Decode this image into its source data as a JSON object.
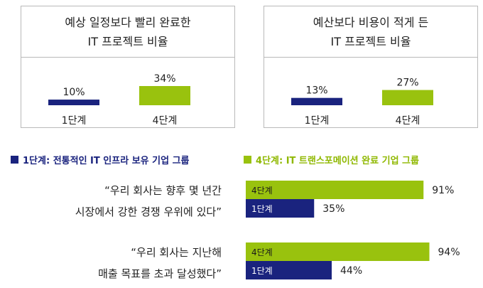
{
  "panels": [
    {
      "title_lines": [
        "예상 일정보다 빨리 완료한",
        "IT 프로젝트 비율"
      ],
      "left_value": "10%",
      "right_value": "34%",
      "left_category": "1단계",
      "right_category": "4단계"
    },
    {
      "title_lines": [
        "예산보다 비용이 적게 든",
        "IT 프로젝트 비율"
      ],
      "left_value": "13%",
      "right_value": "27%",
      "left_category": "1단계",
      "right_category": "4단계"
    }
  ],
  "legend": {
    "stage1": "1단계: 전통적인 IT 인프라 보유 기업 그룹",
    "stage4": "4단계: IT 트랜스포메이션 완료 기업 그룹"
  },
  "colors": {
    "stage1": "#1a237e",
    "stage4": "#99c20e"
  },
  "chart_data": [
    {
      "type": "bar",
      "title": "예상 일정보다 빨리 완료한 IT 프로젝트 비율",
      "categories": [
        "1단계",
        "4단계"
      ],
      "values": [
        10,
        34
      ],
      "unit": "%"
    },
    {
      "type": "bar",
      "title": "예산보다 비용이 적게 든 IT 프로젝트 비율",
      "categories": [
        "1단계",
        "4단계"
      ],
      "values": [
        13,
        27
      ],
      "unit": "%"
    },
    {
      "type": "bar",
      "orientation": "horizontal",
      "groups": [
        {
          "quote_lines": [
            "“우리 회사는 향후 몇 년간",
            "시장에서 강한 경쟁 우위에 있다”"
          ],
          "bars": [
            {
              "label": "4단계",
              "value": 91,
              "value_label": "91%"
            },
            {
              "label": "1단계",
              "value": 35,
              "value_label": "35%"
            }
          ]
        },
        {
          "quote_lines": [
            "“우리 회사는 지난해",
            "매출 목표를 초과 달성했다”"
          ],
          "bars": [
            {
              "label": "4단계",
              "value": 94,
              "value_label": "94%"
            },
            {
              "label": "1단계",
              "value": 44,
              "value_label": "44%"
            }
          ]
        }
      ]
    }
  ]
}
